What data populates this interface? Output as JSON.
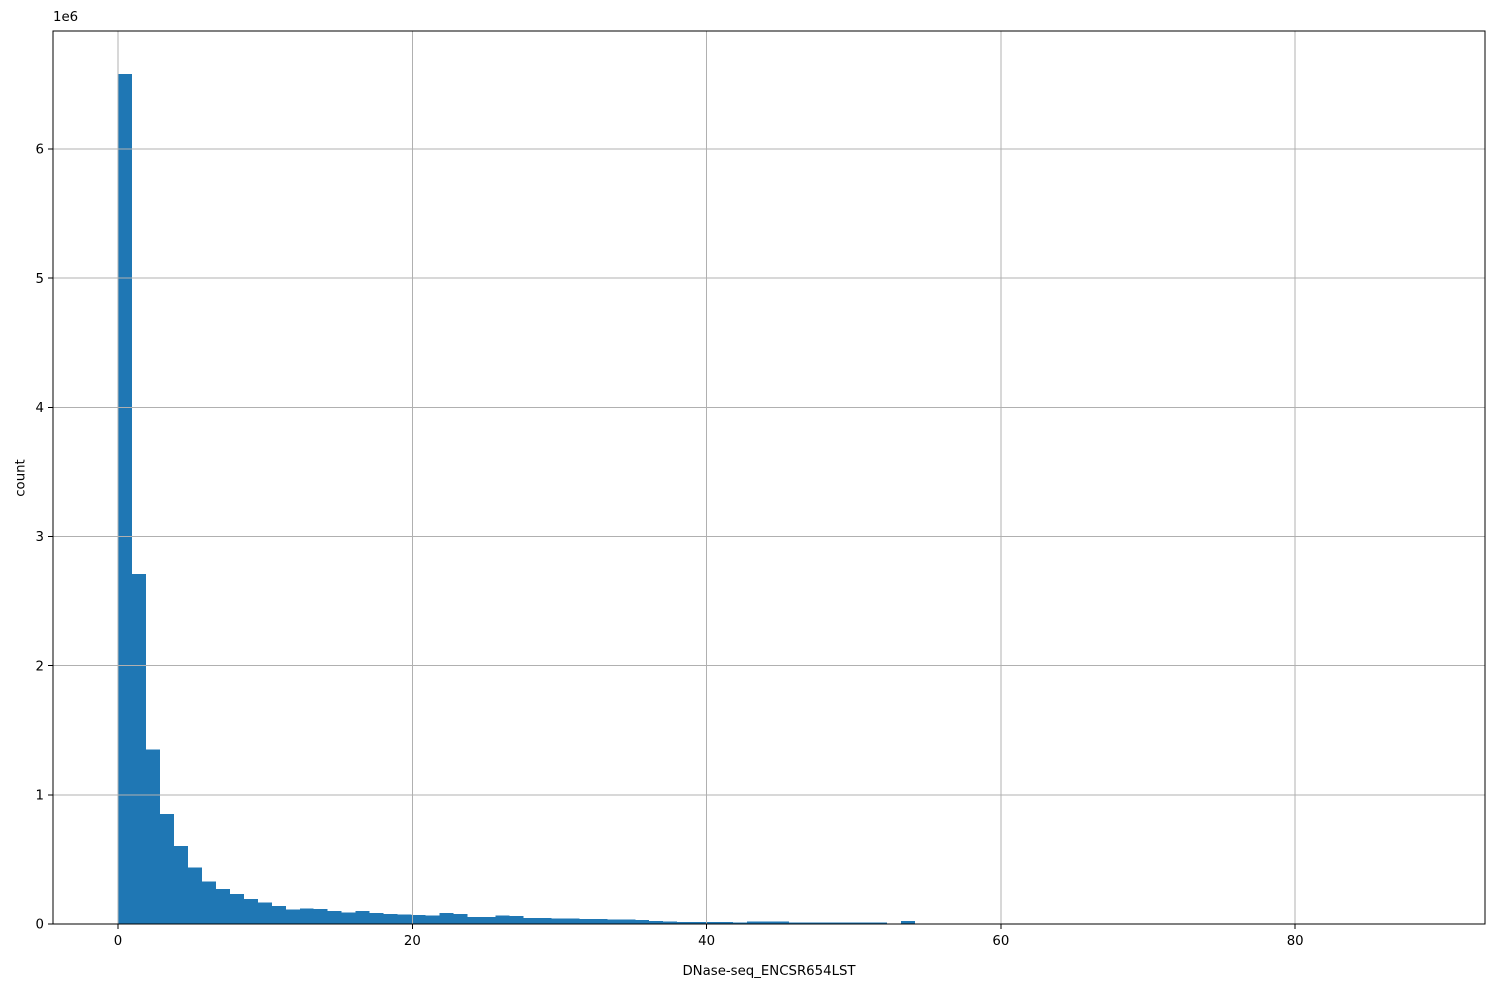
{
  "chart_data": {
    "type": "bar",
    "subtype": "histogram",
    "title": "",
    "xlabel": "DNase-seq_ENCSR654LST",
    "ylabel": "count",
    "y_offset_label": "1e6",
    "x_ticks": [
      0,
      20,
      40,
      60,
      80
    ],
    "y_ticks": [
      0,
      1,
      2,
      3,
      4,
      5,
      6
    ],
    "y_tick_scale": 1000000,
    "xlim": [
      -4.42,
      92.9
    ],
    "ylim": [
      0,
      6914000
    ],
    "grid": true,
    "grid_on_top": true,
    "legend": null,
    "bar_color": "#1f77b4",
    "grid_color": "#b0b0b0",
    "axis_color": "#000000",
    "bin_start": 0,
    "bin_width": 0.95,
    "counts": [
      6580000,
      2710000,
      1350000,
      851000,
      605000,
      437000,
      330000,
      272000,
      231000,
      193000,
      166000,
      141000,
      112000,
      121000,
      117000,
      100000,
      91000,
      99000,
      86000,
      79000,
      72000,
      70000,
      67000,
      84000,
      78000,
      56000,
      54000,
      67000,
      62000,
      46000,
      45000,
      44000,
      43000,
      40000,
      38000,
      36000,
      34000,
      30000,
      22000,
      19000,
      17000,
      16000,
      15000,
      14000,
      13000,
      20000,
      21000,
      19000,
      12000,
      12000,
      11000,
      11000,
      10000,
      10000,
      10000,
      2000,
      22000,
      4000,
      3500,
      3000,
      2800,
      2500,
      2300,
      2100,
      2000,
      1800,
      1700,
      1600,
      1500,
      1400,
      1300,
      1200,
      1100,
      1000,
      950,
      900,
      850,
      800,
      750,
      700,
      650,
      600,
      550,
      500,
      450,
      400,
      350,
      300,
      250,
      200,
      150,
      120,
      100
    ]
  }
}
